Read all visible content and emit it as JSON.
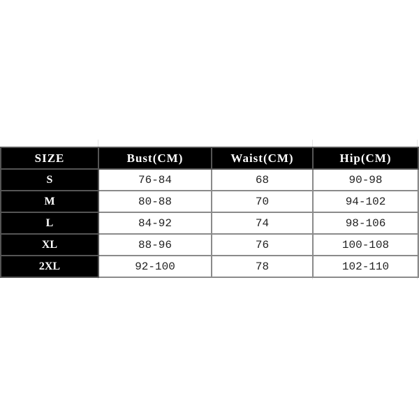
{
  "table": {
    "headers": [
      "SIZE",
      "Bust(CM)",
      "Waist(CM)",
      "Hip(CM)"
    ],
    "rows": [
      [
        "S",
        "76-84",
        "68",
        "90-98"
      ],
      [
        "M",
        "80-88",
        "70",
        "94-102"
      ],
      [
        "L",
        "84-92",
        "74",
        "98-106"
      ],
      [
        "XL",
        "88-96",
        "76",
        "100-108"
      ],
      [
        "2XL",
        "92-100",
        "78",
        "102-110"
      ]
    ]
  },
  "colors": {
    "header_bg": "#000000",
    "header_text": "#ffffff",
    "border": "#8a8a8a"
  }
}
